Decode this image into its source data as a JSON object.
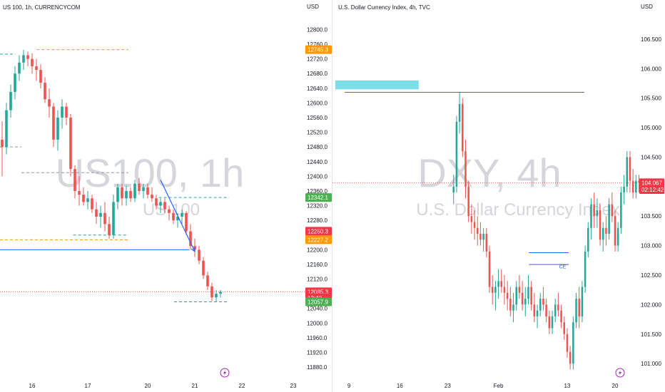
{
  "colors": {
    "up": "#26a69a",
    "down": "#ef5350",
    "axis_text": "#131722",
    "watermark": "#c5c8cf",
    "orange": "#ff9800",
    "green_tag": "#4caf50",
    "red_tag": "#f23645",
    "blue_line": "#2962ff",
    "zone": "#5dd5e3",
    "purple": "#5c51c6"
  },
  "chart_data": [
    {
      "type": "candlestick",
      "title": "US 100, 1h, CURRENCYCOM",
      "watermark_main": "US100, 1h",
      "watermark_sub": "US 100",
      "currency": "USD",
      "y_ticks": [
        11880,
        11920,
        11960,
        12000,
        12040,
        12080,
        12120,
        12160,
        12200,
        12240,
        12280,
        12320,
        12360,
        12400,
        12440,
        12480,
        12520,
        12560,
        12600,
        12640,
        12680,
        12720,
        12760,
        12800
      ],
      "ylim": [
        11851,
        12830
      ],
      "x_ticks": [
        "16",
        "17",
        "20",
        "21",
        "22",
        "23"
      ],
      "x_tick_index": [
        7,
        20,
        34,
        45,
        56,
        68
      ],
      "x_count": 70,
      "price_tags": [
        {
          "text": "12745.3",
          "value": 12745.3,
          "kind": "orange"
        },
        {
          "text": "12342.1",
          "value": 12342.1,
          "kind": "green"
        },
        {
          "text": "12250.3",
          "value": 12250.3,
          "kind": "red"
        },
        {
          "text": "12227.2",
          "value": 12227.2,
          "kind": "orange"
        },
        {
          "text": "12085.3",
          "value": 12085.3,
          "kind": "red"
        },
        {
          "text": "12:42",
          "value": 12069,
          "kind": "red"
        },
        {
          "text": "12057.9",
          "value": 12057.9,
          "kind": "green"
        }
      ],
      "candles": [
        [
          12500,
          12550,
          12400,
          12480
        ],
        [
          12480,
          12600,
          12460,
          12580
        ],
        [
          12580,
          12650,
          12560,
          12630
        ],
        [
          12630,
          12700,
          12610,
          12680
        ],
        [
          12680,
          12730,
          12660,
          12710
        ],
        [
          12710,
          12745,
          12690,
          12730
        ],
        [
          12730,
          12740,
          12700,
          12720
        ],
        [
          12720,
          12735,
          12680,
          12700
        ],
        [
          12700,
          12720,
          12660,
          12690
        ],
        [
          12690,
          12705,
          12640,
          12655
        ],
        [
          12655,
          12670,
          12600,
          12610
        ],
        [
          12610,
          12640,
          12560,
          12590
        ],
        [
          12590,
          12600,
          12480,
          12500
        ],
        [
          12500,
          12580,
          12470,
          12560
        ],
        [
          12560,
          12610,
          12530,
          12590
        ],
        [
          12590,
          12600,
          12540,
          12560
        ],
        [
          12560,
          12570,
          12400,
          12420
        ],
        [
          12420,
          12430,
          12340,
          12360
        ],
        [
          12360,
          12400,
          12320,
          12350
        ],
        [
          12350,
          12370,
          12320,
          12330
        ],
        [
          12330,
          12360,
          12310,
          12340
        ],
        [
          12340,
          12350,
          12300,
          12310
        ],
        [
          12310,
          12330,
          12270,
          12290
        ],
        [
          12290,
          12320,
          12260,
          12300
        ],
        [
          12300,
          12330,
          12250,
          12270
        ],
        [
          12270,
          12290,
          12230,
          12240
        ],
        [
          12240,
          12350,
          12230,
          12330
        ],
        [
          12330,
          12380,
          12310,
          12370
        ],
        [
          12370,
          12380,
          12320,
          12340
        ],
        [
          12340,
          12375,
          12320,
          12360
        ],
        [
          12360,
          12370,
          12330,
          12340
        ],
        [
          12340,
          12390,
          12330,
          12380
        ],
        [
          12380,
          12395,
          12350,
          12360
        ],
        [
          12360,
          12380,
          12340,
          12370
        ],
        [
          12370,
          12380,
          12340,
          12350
        ],
        [
          12350,
          12370,
          12330,
          12340
        ],
        [
          12340,
          12350,
          12310,
          12320
        ],
        [
          12320,
          12340,
          12300,
          12330
        ],
        [
          12330,
          12340,
          12300,
          12310
        ],
        [
          12310,
          12320,
          12280,
          12300
        ],
        [
          12300,
          12310,
          12270,
          12280
        ],
        [
          12280,
          12300,
          12260,
          12290
        ],
        [
          12290,
          12310,
          12270,
          12300
        ],
        [
          12300,
          12305,
          12240,
          12250
        ],
        [
          12250,
          12270,
          12200,
          12210
        ],
        [
          12210,
          12230,
          12180,
          12200
        ],
        [
          12200,
          12210,
          12160,
          12170
        ],
        [
          12170,
          12180,
          12120,
          12130
        ],
        [
          12130,
          12140,
          12090,
          12100
        ],
        [
          12100,
          12110,
          12060,
          12070
        ],
        [
          12070,
          12090,
          12058,
          12080
        ],
        [
          12080,
          12090,
          12070,
          12085
        ]
      ],
      "candle_start_index": 0,
      "hlines": [
        {
          "value": 12745.3,
          "from": 0.12,
          "to": 0.42,
          "style": "orange-dash"
        },
        {
          "value": 12733,
          "from": 0.0,
          "to": 0.05,
          "style": "green-dash"
        },
        {
          "value": 12480,
          "from": 0.0,
          "to": 0.07,
          "style": "gray-dash"
        },
        {
          "value": 12410,
          "from": 0.07,
          "to": 0.42,
          "style": "gray-dash"
        },
        {
          "value": 12342.1,
          "from": 0.52,
          "to": 0.75,
          "style": "green-dash"
        },
        {
          "value": 12227.2,
          "from": 0.0,
          "to": 0.42,
          "style": "orange-dash"
        },
        {
          "value": 12240,
          "from": 0.24,
          "to": 0.42,
          "style": "green-dash"
        },
        {
          "value": 12200,
          "from": 0.0,
          "to": 0.62,
          "style": "blue-solid"
        },
        {
          "value": 12085.3,
          "from": 0.0,
          "to": 1.0,
          "style": "red-dot"
        },
        {
          "value": 12057.9,
          "from": 0.57,
          "to": 0.75,
          "style": "green-dash"
        }
      ],
      "arrow": {
        "from": [
          37,
          12390
        ],
        "to": [
          45,
          12195
        ]
      }
    },
    {
      "type": "candlestick",
      "title": "U.S. Dollar Currency Index, 4h, TVC",
      "watermark_main": "DXY, 4h",
      "watermark_sub": "U.S. Dollar Currency Index",
      "currency": "USD",
      "y_ticks": [
        101.0,
        101.5,
        102.0,
        102.5,
        103.0,
        103.5,
        104.0,
        104.5,
        105.0,
        105.5,
        106.0,
        106.5
      ],
      "y_tick_labels": [
        "101.000",
        "101.500",
        "102.000",
        "102.500",
        "103.000",
        "103.500",
        "104.000",
        "104.500",
        "105.000",
        "105.500",
        "106.000",
        "106.500"
      ],
      "ylim": [
        100.76,
        106.85
      ],
      "x_ticks": [
        "9",
        "16",
        "23",
        "Feb",
        "13",
        "20"
      ],
      "x_tick_index": [
        5,
        22,
        38,
        55,
        78,
        94
      ],
      "x_count": 105,
      "price_tags": [
        {
          "text": "104.067",
          "value": 104.067,
          "kind": "red"
        },
        {
          "text": "02:12:42",
          "value": 103.95,
          "kind": "red"
        }
      ],
      "candles": [
        [
          103.9,
          104.2,
          103.7,
          104.0
        ],
        [
          104.0,
          105.2,
          103.9,
          105.1
        ],
        [
          105.1,
          105.6,
          104.9,
          105.4
        ],
        [
          105.4,
          105.5,
          104.5,
          104.6
        ],
        [
          104.6,
          104.8,
          103.8,
          104.0
        ],
        [
          104.0,
          104.1,
          103.4,
          103.5
        ],
        [
          103.5,
          103.7,
          103.2,
          103.4
        ],
        [
          103.4,
          103.6,
          103.1,
          103.3
        ],
        [
          103.3,
          103.5,
          103.0,
          103.2
        ],
        [
          103.2,
          103.4,
          103.0,
          103.1
        ],
        [
          103.1,
          103.3,
          102.9,
          103.2
        ],
        [
          103.2,
          103.3,
          102.8,
          102.9
        ],
        [
          102.9,
          103.0,
          102.2,
          102.3
        ],
        [
          102.3,
          102.5,
          102.0,
          102.2
        ],
        [
          102.2,
          102.4,
          101.9,
          102.3
        ],
        [
          102.3,
          102.6,
          102.1,
          102.4
        ],
        [
          102.4,
          102.6,
          102.2,
          102.3
        ],
        [
          102.3,
          102.5,
          102.0,
          102.2
        ],
        [
          102.2,
          102.4,
          101.9,
          102.1
        ],
        [
          102.1,
          102.3,
          101.8,
          101.9
        ],
        [
          101.9,
          102.2,
          101.7,
          102.0
        ],
        [
          102.0,
          102.4,
          101.9,
          102.3
        ],
        [
          102.3,
          102.5,
          102.1,
          102.2
        ],
        [
          102.2,
          102.4,
          101.9,
          102.0
        ],
        [
          102.0,
          102.3,
          101.8,
          102.1
        ],
        [
          102.1,
          102.5,
          102.0,
          102.3
        ],
        [
          102.3,
          102.4,
          101.9,
          102.0
        ],
        [
          102.0,
          102.2,
          101.7,
          101.8
        ],
        [
          101.8,
          102.0,
          101.6,
          101.9
        ],
        [
          101.9,
          102.2,
          101.8,
          102.1
        ],
        [
          102.1,
          102.3,
          101.9,
          102.0
        ],
        [
          102.0,
          102.1,
          101.7,
          101.8
        ],
        [
          101.8,
          101.9,
          101.5,
          101.6
        ],
        [
          101.6,
          101.9,
          101.5,
          101.8
        ],
        [
          101.8,
          102.1,
          101.7,
          102.0
        ],
        [
          102.0,
          102.2,
          101.8,
          101.9
        ],
        [
          101.9,
          102.0,
          101.6,
          101.7
        ],
        [
          101.7,
          101.8,
          101.4,
          101.5
        ],
        [
          101.5,
          101.6,
          101.1,
          101.2
        ],
        [
          101.2,
          101.3,
          100.9,
          101.0
        ],
        [
          101.0,
          101.8,
          100.9,
          101.7
        ],
        [
          101.7,
          102.2,
          101.6,
          102.1
        ],
        [
          102.1,
          102.3,
          101.6,
          101.8
        ],
        [
          101.8,
          102.4,
          101.7,
          102.3
        ],
        [
          102.3,
          103.0,
          102.2,
          102.9
        ],
        [
          102.9,
          103.4,
          102.8,
          103.3
        ],
        [
          103.3,
          103.8,
          103.1,
          103.7
        ],
        [
          103.7,
          103.9,
          103.3,
          103.5
        ],
        [
          103.5,
          103.8,
          103.3,
          103.6
        ],
        [
          103.6,
          103.7,
          103.0,
          103.1
        ],
        [
          103.1,
          103.4,
          102.9,
          103.3
        ],
        [
          103.3,
          103.5,
          103.0,
          103.2
        ],
        [
          103.2,
          103.8,
          103.1,
          103.7
        ],
        [
          103.7,
          103.9,
          103.4,
          103.5
        ],
        [
          103.5,
          103.6,
          102.9,
          103.0
        ],
        [
          103.0,
          103.4,
          102.9,
          103.3
        ],
        [
          103.3,
          104.0,
          103.2,
          103.9
        ],
        [
          103.9,
          104.2,
          103.7,
          104.0
        ],
        [
          104.0,
          104.6,
          103.9,
          104.5
        ],
        [
          104.5,
          104.6,
          103.9,
          104.1
        ],
        [
          104.1,
          104.3,
          103.8,
          103.9
        ],
        [
          103.9,
          104.2,
          103.8,
          104.1
        ],
        [
          104.1,
          104.2,
          103.9,
          104.067
        ]
      ],
      "candle_start_index": 40,
      "zone": {
        "low": 105.65,
        "high": 105.8,
        "from": 0.3,
        "to": 3.25
      },
      "hlines": [
        {
          "value": 105.6,
          "from": 0.04,
          "to": 0.82,
          "style": "purple-solid"
        },
        {
          "value": 104.067,
          "from": 0.0,
          "to": 1.0,
          "style": "red-dot"
        },
        {
          "value": 102.88,
          "from": 0.64,
          "to": 0.77,
          "style": "blue-solid"
        },
        {
          "value": 102.68,
          "from": 0.64,
          "to": 0.77,
          "style": "purple-solid"
        }
      ],
      "annotations": [
        {
          "text": "CE",
          "value": 102.65,
          "x_frac": 0.75
        }
      ]
    }
  ]
}
